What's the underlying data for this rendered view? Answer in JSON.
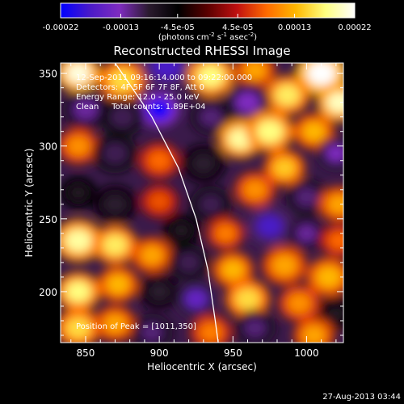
{
  "chart_data": {
    "type": "heatmap",
    "title": "Reconstructed RHESSI Image",
    "xlabel": "Heliocentric X (arcsec)",
    "ylabel": "Heliocentric Y (arcsec)",
    "xlim": [
      833,
      1025
    ],
    "ylim": [
      165,
      357
    ],
    "x_ticks": [
      850,
      900,
      950,
      1000
    ],
    "y_ticks": [
      200,
      250,
      300,
      350
    ],
    "annotations": [
      "12-Sep-2011 09:16:14.000 to 09:22:00.000",
      "Detectors: 4F 5F 6F 7F 8F, Att 0",
      "Energy Range: 12.0 - 25.0 keV",
      "Clean     Total counts: 1.89E+04"
    ],
    "peak_label": "Position of Peak = [1011,350]",
    "peak": [
      1011,
      350
    ],
    "colorbar": {
      "ticks": [
        "-0.00022",
        "-0.00013",
        "-4.5e-05",
        "4.5e-05",
        "0.00013",
        "0.00022"
      ],
      "tick_values": [
        -0.00022,
        -0.00013,
        -4.5e-05,
        4.5e-05,
        0.00013,
        0.00022
      ],
      "range": [
        -0.00022,
        0.00022
      ],
      "units_prefix": "(photons cm",
      "units_exp1": "-2",
      "units_mid": " s",
      "units_exp2": "-1",
      "units_mid2": " asec",
      "units_exp3": "-2",
      "units_suffix": ")"
    },
    "colors": {
      "stops": [
        "#0000ff",
        "#4a1ac8",
        "#7f2cc0",
        "#2a1a2e",
        "#000000",
        "#5a0000",
        "#c01010",
        "#ff6a00",
        "#ffb800",
        "#ffff80",
        "#ffffff"
      ]
    },
    "blobs": [
      {
        "x": 845,
        "y": 350,
        "v": 0.95,
        "r": 12
      },
      {
        "x": 875,
        "y": 345,
        "v": 0.7,
        "r": 13
      },
      {
        "x": 905,
        "y": 355,
        "v": -0.8,
        "r": 14
      },
      {
        "x": 935,
        "y": 348,
        "v": 0.8,
        "r": 13
      },
      {
        "x": 965,
        "y": 352,
        "v": 0.55,
        "r": 11
      },
      {
        "x": 1010,
        "y": 350,
        "v": 1.0,
        "r": 14
      },
      {
        "x": 1022,
        "y": 330,
        "v": 0.9,
        "r": 12
      },
      {
        "x": 987,
        "y": 335,
        "v": 0.75,
        "r": 12
      },
      {
        "x": 960,
        "y": 330,
        "v": -0.6,
        "r": 12
      },
      {
        "x": 900,
        "y": 325,
        "v": -1.0,
        "r": 11
      },
      {
        "x": 850,
        "y": 325,
        "v": -0.55,
        "r": 12
      },
      {
        "x": 875,
        "y": 320,
        "v": -0.45,
        "r": 12
      },
      {
        "x": 935,
        "y": 320,
        "v": -0.5,
        "r": 11
      },
      {
        "x": 955,
        "y": 305,
        "v": 0.85,
        "r": 12
      },
      {
        "x": 975,
        "y": 310,
        "v": 0.8,
        "r": 13
      },
      {
        "x": 1005,
        "y": 310,
        "v": 0.6,
        "r": 11
      },
      {
        "x": 1020,
        "y": 295,
        "v": -0.6,
        "r": 10
      },
      {
        "x": 845,
        "y": 300,
        "v": 0.5,
        "r": 11
      },
      {
        "x": 870,
        "y": 295,
        "v": -0.45,
        "r": 12
      },
      {
        "x": 900,
        "y": 290,
        "v": 0.4,
        "r": 11
      },
      {
        "x": 930,
        "y": 288,
        "v": -0.4,
        "r": 12
      },
      {
        "x": 985,
        "y": 285,
        "v": 0.65,
        "r": 11
      },
      {
        "x": 1000,
        "y": 265,
        "v": -0.5,
        "r": 11
      },
      {
        "x": 965,
        "y": 270,
        "v": 0.5,
        "r": 11
      },
      {
        "x": 1022,
        "y": 260,
        "v": 0.55,
        "r": 11
      },
      {
        "x": 935,
        "y": 260,
        "v": -0.45,
        "r": 11
      },
      {
        "x": 900,
        "y": 262,
        "v": 0.35,
        "r": 10
      },
      {
        "x": 870,
        "y": 260,
        "v": -0.4,
        "r": 12
      },
      {
        "x": 845,
        "y": 268,
        "v": -0.35,
        "r": 10
      },
      {
        "x": 975,
        "y": 245,
        "v": -0.8,
        "r": 12
      },
      {
        "x": 1000,
        "y": 240,
        "v": -0.55,
        "r": 10
      },
      {
        "x": 1022,
        "y": 235,
        "v": 0.4,
        "r": 10
      },
      {
        "x": 945,
        "y": 240,
        "v": 0.45,
        "r": 10
      },
      {
        "x": 915,
        "y": 242,
        "v": -0.35,
        "r": 10
      },
      {
        "x": 845,
        "y": 235,
        "v": 0.85,
        "r": 13
      },
      {
        "x": 870,
        "y": 232,
        "v": 0.75,
        "r": 12
      },
      {
        "x": 895,
        "y": 225,
        "v": 0.55,
        "r": 11
      },
      {
        "x": 920,
        "y": 220,
        "v": -0.45,
        "r": 11
      },
      {
        "x": 950,
        "y": 215,
        "v": 0.6,
        "r": 11
      },
      {
        "x": 985,
        "y": 218,
        "v": 0.55,
        "r": 12
      },
      {
        "x": 1015,
        "y": 210,
        "v": 0.6,
        "r": 12
      },
      {
        "x": 845,
        "y": 200,
        "v": 0.8,
        "r": 12
      },
      {
        "x": 872,
        "y": 205,
        "v": 0.6,
        "r": 11
      },
      {
        "x": 900,
        "y": 200,
        "v": -0.4,
        "r": 11
      },
      {
        "x": 925,
        "y": 195,
        "v": -0.7,
        "r": 11
      },
      {
        "x": 960,
        "y": 195,
        "v": 0.7,
        "r": 12
      },
      {
        "x": 995,
        "y": 192,
        "v": 0.5,
        "r": 11
      },
      {
        "x": 1020,
        "y": 185,
        "v": -0.35,
        "r": 10
      },
      {
        "x": 845,
        "y": 175,
        "v": 0.7,
        "r": 12
      },
      {
        "x": 870,
        "y": 178,
        "v": 0.55,
        "r": 11
      },
      {
        "x": 895,
        "y": 172,
        "v": -0.5,
        "r": 11
      },
      {
        "x": 935,
        "y": 172,
        "v": 0.45,
        "r": 11
      },
      {
        "x": 965,
        "y": 175,
        "v": -0.5,
        "r": 11
      },
      {
        "x": 1005,
        "y": 170,
        "v": 0.55,
        "r": 11
      }
    ],
    "limb": [
      [
        870,
        357
      ],
      [
        895,
        320
      ],
      [
        913,
        285
      ],
      [
        925,
        250
      ],
      [
        933,
        215
      ],
      [
        938,
        180
      ],
      [
        940,
        165
      ]
    ]
  },
  "footer": {
    "timestamp": "27-Aug-2013 03:44"
  }
}
